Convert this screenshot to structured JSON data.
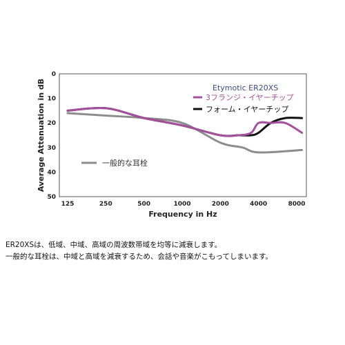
{
  "chart_data": {
    "type": "line",
    "xlabel": "Frequency in Hz",
    "ylabel": "Average Attenuation in dB",
    "x_ticks": [
      "125",
      "250",
      "500",
      "1000",
      "2000",
      "4000",
      "8000"
    ],
    "y_ticks": [
      0,
      10,
      20,
      30,
      40,
      50
    ],
    "ylim": [
      0,
      50
    ],
    "y_inverted": true,
    "x_scale": "log2",
    "grid": false,
    "legend_title": "Etymotic ER20XS",
    "legend_position": "top-right",
    "series": [
      {
        "name": "3フランジ・イヤーチップ",
        "color": "#a4509a",
        "x": [
          125,
          250,
          500,
          1000,
          2000,
          2800,
          3500,
          4000,
          5000,
          6500,
          8800
        ],
        "y": [
          15,
          14,
          18,
          21,
          25,
          25,
          24,
          20,
          20,
          20,
          24
        ]
      },
      {
        "name": "フォーム・イヤーチップ",
        "color": "#111111",
        "x": [
          125,
          250,
          500,
          1000,
          2000,
          2800,
          3500,
          4000,
          5000,
          6500,
          8800
        ],
        "y": [
          15,
          14,
          18,
          21,
          25,
          25,
          25,
          24,
          20,
          18,
          18
        ]
      },
      {
        "name": "一般的な耳栓",
        "color": "#8c8c8c",
        "x": [
          125,
          250,
          500,
          1000,
          2000,
          3000,
          4000,
          8800
        ],
        "y": [
          16,
          17,
          18,
          20,
          28,
          30,
          32,
          31
        ]
      }
    ]
  },
  "caption": {
    "line1": "ER20XSは、低域、中域、高域の周波数帯域を均等に減衰します。",
    "line2": "一般的な耳栓は、中域と高域を減衰するため、会話や音楽がこもってしまいます。"
  }
}
